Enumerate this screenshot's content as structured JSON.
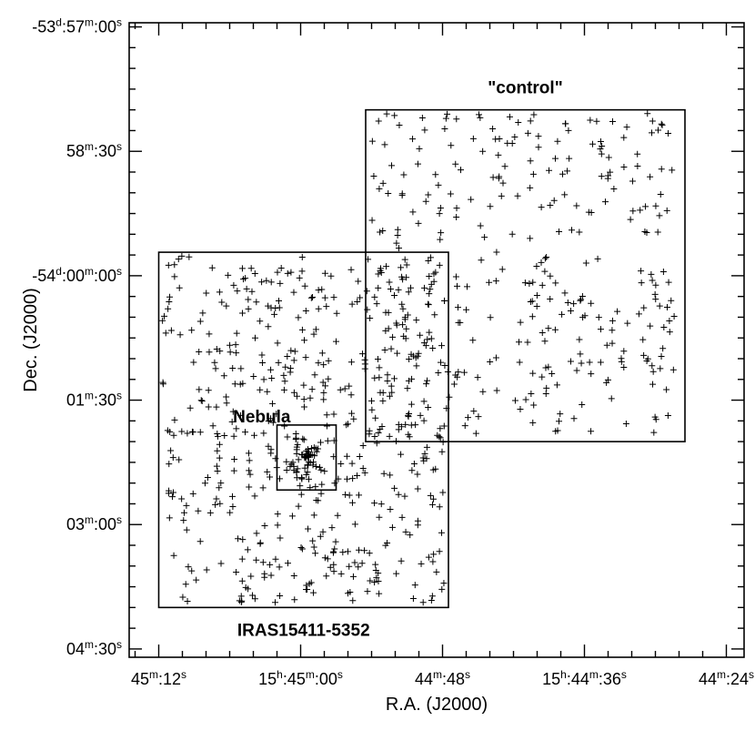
{
  "chart_data": {
    "type": "scatter",
    "marker": "plus",
    "xlabel": "R.A. (J2000)",
    "ylabel": "Dec. (J2000)",
    "x_unit": "RA seconds offset from 15h45m00s (positive = east, axis increases leftward)",
    "y_unit": "Dec seconds offset from -54d00m00s (positive = north)",
    "xlim": [
      14.5,
      -37.5
    ],
    "ylim": [
      -276,
      183
    ],
    "x_ticks": [
      {
        "value": 12,
        "parts": [
          {
            "t": "45"
          },
          {
            "t": "m",
            "sup": true
          },
          {
            "t": ":12"
          },
          {
            "t": "s",
            "sup": true
          }
        ]
      },
      {
        "value": 0,
        "parts": [
          {
            "t": "15"
          },
          {
            "t": "h",
            "sup": true
          },
          {
            "t": ":45"
          },
          {
            "t": "m",
            "sup": true
          },
          {
            "t": ":00"
          },
          {
            "t": "s",
            "sup": true
          }
        ]
      },
      {
        "value": -12,
        "parts": [
          {
            "t": "44"
          },
          {
            "t": "m",
            "sup": true
          },
          {
            "t": ":48"
          },
          {
            "t": "s",
            "sup": true
          }
        ]
      },
      {
        "value": -24,
        "parts": [
          {
            "t": "15"
          },
          {
            "t": "h",
            "sup": true
          },
          {
            "t": ":44"
          },
          {
            "t": "m",
            "sup": true
          },
          {
            "t": ":36"
          },
          {
            "t": "s",
            "sup": true
          }
        ]
      },
      {
        "value": -36,
        "parts": [
          {
            "t": "44"
          },
          {
            "t": "m",
            "sup": true
          },
          {
            "t": ":24"
          },
          {
            "t": "s",
            "sup": true
          }
        ]
      }
    ],
    "y_ticks": [
      {
        "value": 180,
        "parts": [
          {
            "t": "-53"
          },
          {
            "t": "d",
            "sup": true
          },
          {
            "t": ":57"
          },
          {
            "t": "m",
            "sup": true
          },
          {
            "t": ":00"
          },
          {
            "t": "s",
            "sup": true
          }
        ]
      },
      {
        "value": 90,
        "parts": [
          {
            "t": "58"
          },
          {
            "t": "m",
            "sup": true
          },
          {
            "t": ":30"
          },
          {
            "t": "s",
            "sup": true
          }
        ]
      },
      {
        "value": 0,
        "parts": [
          {
            "t": "-54"
          },
          {
            "t": "d",
            "sup": true
          },
          {
            "t": ":00"
          },
          {
            "t": "m",
            "sup": true
          },
          {
            "t": ":00"
          },
          {
            "t": "s",
            "sup": true
          }
        ]
      },
      {
        "value": -90,
        "parts": [
          {
            "t": "01"
          },
          {
            "t": "m",
            "sup": true
          },
          {
            "t": ":30"
          },
          {
            "t": "s",
            "sup": true
          }
        ]
      },
      {
        "value": -180,
        "parts": [
          {
            "t": "03"
          },
          {
            "t": "m",
            "sup": true
          },
          {
            "t": ":00"
          },
          {
            "t": "s",
            "sup": true
          }
        ]
      },
      {
        "value": -270,
        "parts": [
          {
            "t": "04"
          },
          {
            "t": "m",
            "sup": true
          },
          {
            "t": ":30"
          },
          {
            "t": "s",
            "sup": true
          }
        ]
      }
    ],
    "x_minor_step": 2,
    "y_minor_step": 15,
    "regions": [
      {
        "name": "IRAS15411-5352",
        "label": "IRAS15411-5352",
        "ra": [
          12,
          -12.5
        ],
        "dec": [
          -240,
          17
        ],
        "label_pos": "bottom",
        "seed": 11,
        "count": 520
      },
      {
        "name": "\"control\"",
        "label": "\"control\"",
        "ra": [
          -5.5,
          -32.5
        ],
        "dec": [
          -120,
          120
        ],
        "label_pos": "top",
        "seed": 29,
        "count": 330
      },
      {
        "name": "Nebula",
        "label": "Nebula",
        "ra": [
          2,
          -3
        ],
        "dec": [
          -155,
          -108
        ],
        "label_pos": "top-left",
        "seed": 47,
        "count": 60
      }
    ]
  }
}
